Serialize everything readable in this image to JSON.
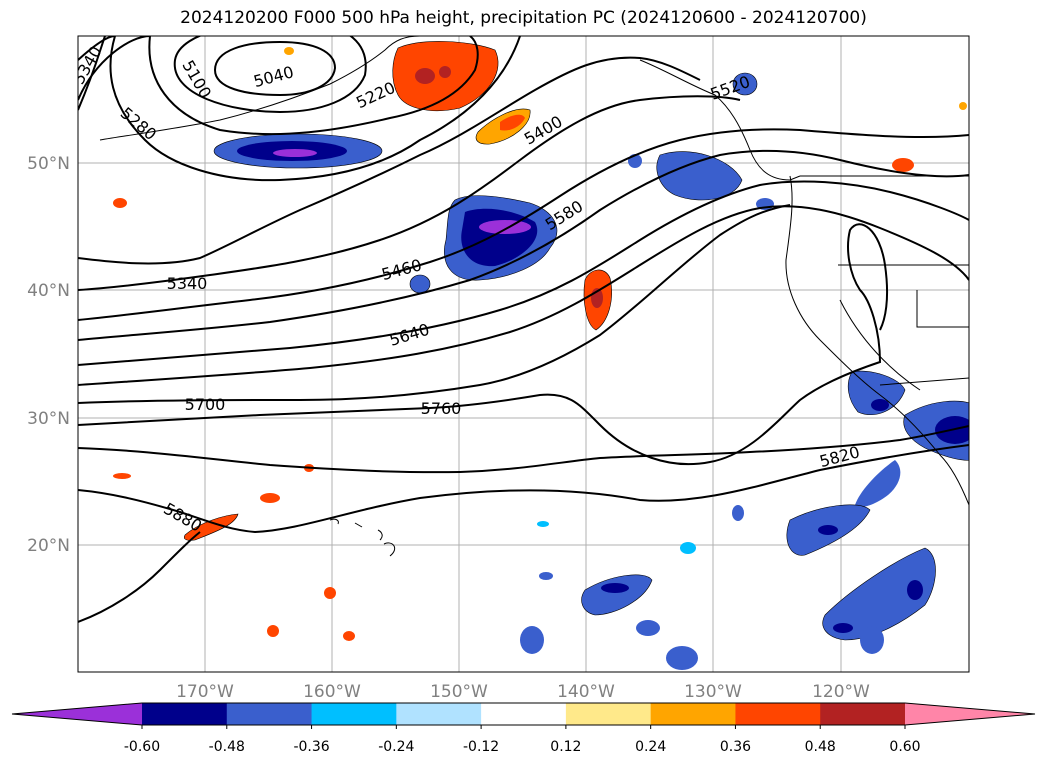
{
  "title": "2024120200 F000 500 hPa height, precipitation PC (2024120600 - 2024120700)",
  "lat_labels": [
    "50°N",
    "40°N",
    "30°N",
    "20°N"
  ],
  "lon_labels": [
    "170°W",
    "160°W",
    "150°W",
    "140°W",
    "130°W",
    "120°W"
  ],
  "contour_labels": [
    "5040",
    "5100",
    "5220",
    "5280",
    "5340",
    "5340",
    "5400",
    "5460",
    "5520",
    "5580",
    "5640",
    "5700",
    "5760",
    "5820",
    "5880"
  ],
  "colorbar": {
    "ticks": [
      "-0.60",
      "-0.48",
      "-0.36",
      "-0.24",
      "-0.12",
      "0.12",
      "0.24",
      "0.36",
      "0.48",
      "0.60"
    ],
    "colors": [
      "#9b30d9",
      "#00008b",
      "#3a5fcd",
      "#00bfff",
      "#b0e2ff",
      "#ffffff",
      "#ffe98a",
      "#ffa500",
      "#ff4500",
      "#b22222",
      "#ff85a8"
    ]
  }
}
